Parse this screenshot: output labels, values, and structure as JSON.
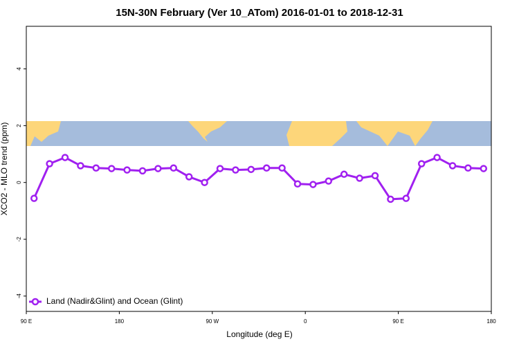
{
  "chart_data": {
    "type": "line",
    "title": "15N-30N February (Ver 10_ATom)   2016-01-01 to 2018-12-31",
    "x_label": "Longitude (deg E)",
    "y_label": "XCO2 - MLO trend (ppm)",
    "x": [
      97.5,
      112.5,
      127.5,
      142.5,
      157.5,
      172.5,
      187.5,
      202.5,
      217.5,
      232.5,
      247.5,
      262.5,
      277.5,
      292.5,
      307.5,
      322.5,
      337.5,
      352.5,
      367.5,
      382.5,
      397.5,
      412.5,
      427.5,
      442.5,
      457.5,
      472.5,
      487.5,
      502.5,
      517.5,
      532.5
    ],
    "series": [
      {
        "name": "Land (Nadir&Glint) and Ocean (Glint)",
        "color": "#a020f0",
        "values": [
          -0.56,
          0.66,
          0.88,
          0.59,
          0.51,
          0.49,
          0.44,
          0.41,
          0.49,
          0.51,
          0.2,
          0.0,
          0.49,
          0.44,
          0.46,
          0.51,
          0.51,
          -0.05,
          -0.07,
          0.05,
          0.29,
          0.15,
          0.24,
          -0.59,
          -0.56,
          0.66,
          0.88,
          0.59,
          0.51,
          0.49
        ]
      }
    ],
    "xlim": [
      90,
      540
    ],
    "xticks": [
      {
        "value": 90,
        "label": "90 E"
      },
      {
        "value": 180,
        "label": "180"
      },
      {
        "value": 270,
        "label": "90 W"
      },
      {
        "value": 360,
        "label": "0"
      },
      {
        "value": 450,
        "label": "90 E"
      },
      {
        "value": 540,
        "label": "180"
      }
    ],
    "ylim": [
      -4.54,
      5.5
    ],
    "yticks": [
      -4,
      -2,
      0,
      2,
      4
    ],
    "legend_position": "bottomleft"
  }
}
